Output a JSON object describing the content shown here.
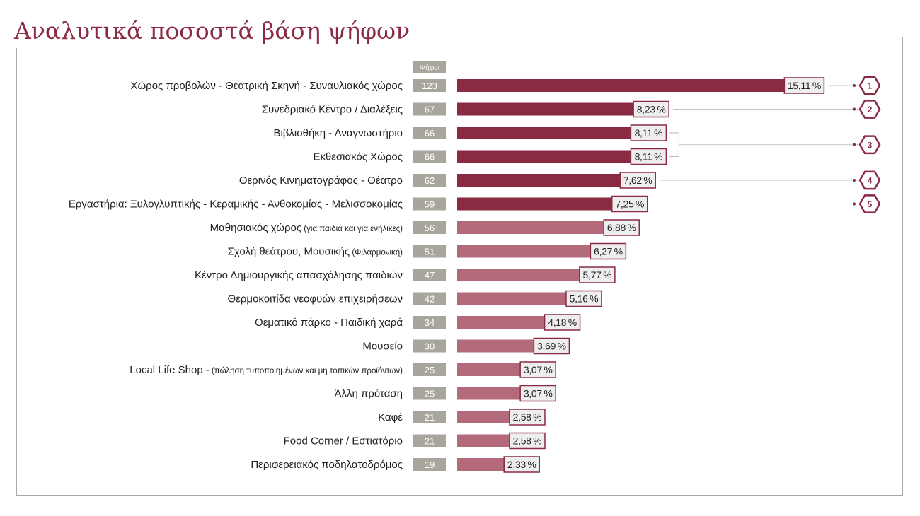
{
  "title": "Αναλυτικά ποσοστά βάση ψήφων",
  "colors": {
    "accent": "#8a2a43",
    "highlight_bar": "#8a2a43",
    "regular_bar": "#b36b7c",
    "vote_box": "#a8a59c",
    "percent_box_fill": "#eeeeee"
  },
  "chart_data": {
    "type": "bar",
    "orientation": "horizontal",
    "votes_header": "Ψήφοι",
    "percent_suffix": "%",
    "xlim": [
      0,
      16
    ],
    "rows": [
      {
        "label": "Χώρος προβολών - Θεατρική Σκηνή - Συναυλιακός χώρος",
        "sub": "",
        "votes": "123",
        "percent": 15.11,
        "percent_text": "15,11",
        "highlight": true
      },
      {
        "label": "Συνεδριακό Κέντρο / Διαλέξεις",
        "sub": "",
        "votes": "67",
        "percent": 8.23,
        "percent_text": "8,23",
        "highlight": true
      },
      {
        "label": "Βιβλιοθήκη - Αναγνωστήριο",
        "sub": "",
        "votes": "66",
        "percent": 8.11,
        "percent_text": "8,11",
        "highlight": true
      },
      {
        "label": "Εκθεσιακός Χώρος",
        "sub": "",
        "votes": "66",
        "percent": 8.11,
        "percent_text": "8,11",
        "highlight": true
      },
      {
        "label": "Θερινός Κινηματογράφος - Θέατρο",
        "sub": "",
        "votes": "62",
        "percent": 7.62,
        "percent_text": "7,62",
        "highlight": true
      },
      {
        "label": "Εργαστήρια: Ξυλογλυπτικής - Κεραμικής - Ανθοκομίας - Μελισσοκομίας",
        "sub": "",
        "votes": "59",
        "percent": 7.25,
        "percent_text": "7,25",
        "highlight": true
      },
      {
        "label": "Μαθησιακός χώρος",
        "sub": "(για παιδιά και για ενήλικες)",
        "votes": "56",
        "percent": 6.88,
        "percent_text": "6,88",
        "highlight": false
      },
      {
        "label": "Σχολή θεάτρου, Μουσικής",
        "sub": "(Φιλαρμονική)",
        "votes": "51",
        "percent": 6.27,
        "percent_text": "6,27",
        "highlight": false
      },
      {
        "label": "Κέντρο Δημιουργικής απασχόλησης παιδιών",
        "sub": "",
        "votes": "47",
        "percent": 5.77,
        "percent_text": "5,77",
        "highlight": false
      },
      {
        "label": "Θερμοκοιτίδα νεοφυών επιχειρήσεων",
        "sub": "",
        "votes": "42",
        "percent": 5.16,
        "percent_text": "5,16",
        "highlight": false
      },
      {
        "label": "Θεματικό πάρκο - Παιδική χαρά",
        "sub": "",
        "votes": "34",
        "percent": 4.18,
        "percent_text": "4,18",
        "highlight": false
      },
      {
        "label": "Μουσείο",
        "sub": "",
        "votes": "30",
        "percent": 3.69,
        "percent_text": "3,69",
        "highlight": false
      },
      {
        "label": "Local Life Shop -",
        "sub": "(πώληση τυποποιημένων και μη τοπικών προϊόντων)",
        "votes": "25",
        "percent": 3.07,
        "percent_text": "3,07",
        "highlight": false
      },
      {
        "label": "Άλλη πρόταση",
        "sub": "",
        "votes": "25",
        "percent": 3.07,
        "percent_text": "3,07",
        "highlight": false
      },
      {
        "label": "Καφέ",
        "sub": "",
        "votes": "21",
        "percent": 2.58,
        "percent_text": "2,58",
        "highlight": false
      },
      {
        "label": "Food Corner / Εστιατόριο",
        "sub": "",
        "votes": "21",
        "percent": 2.58,
        "percent_text": "2,58",
        "highlight": false
      },
      {
        "label": "Περιφερειακός ποδηλατοδρόμος",
        "sub": "",
        "votes": "19",
        "percent": 2.33,
        "percent_text": "2,33",
        "highlight": false
      }
    ],
    "ranks": [
      {
        "text": "1",
        "rows": [
          0
        ]
      },
      {
        "text": "2",
        "rows": [
          1
        ]
      },
      {
        "text": "3",
        "rows": [
          2,
          3
        ]
      },
      {
        "text": "4",
        "rows": [
          4
        ]
      },
      {
        "text": "5",
        "rows": [
          5
        ]
      }
    ]
  }
}
